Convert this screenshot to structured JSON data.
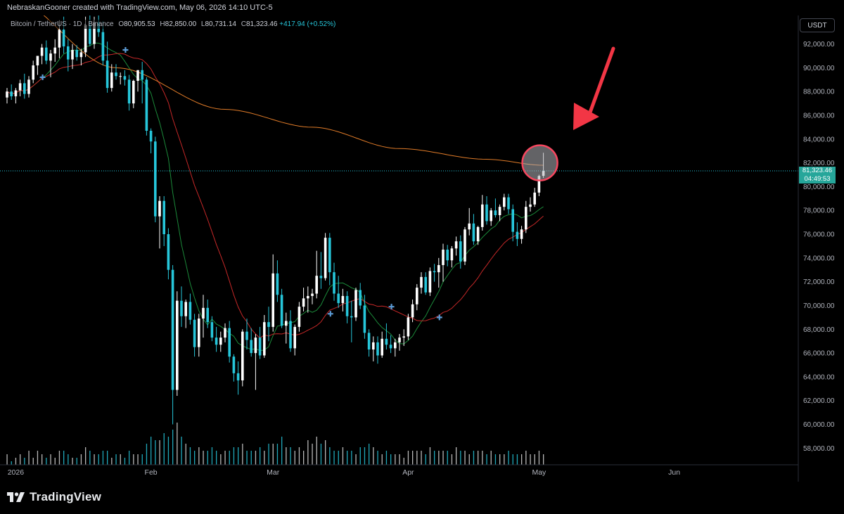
{
  "header": {
    "created_text": "NebraskanGooner created with TradingView.com, May 06, 2026 14:10 UTC-5"
  },
  "legend": {
    "symbol": "Bitcoin / TetherUS · 1D · Binance",
    "open_label": "O",
    "open_value": "80,905.53",
    "high_label": "H",
    "high_value": "82,850.00",
    "low_label": "L",
    "low_value": "80,731.14",
    "close_label": "C",
    "close_value": "81,323.46",
    "change": "+417.94 (+0.52%)"
  },
  "currency_button": "USDT",
  "price_tag": {
    "price": "81,323.46",
    "countdown": "04:49:53"
  },
  "branding": {
    "logo_text": "TradingView",
    "logo_icon": "tradingview-logo-icon"
  },
  "colors": {
    "background": "#000000",
    "candle_up": "#ffffff",
    "candle_down": "#26c6da",
    "ma_fast": "#1b8a3a",
    "ma_mid": "#c62828",
    "ma_slow": "#e07b28",
    "volume": "#26c6da",
    "price_line": "#26c6da",
    "annotation_arrow": "#f23645",
    "annotation_circle": "#f7475f"
  },
  "chart_data": {
    "type": "candlestick",
    "interval": "1D",
    "y_axis_ticks": [
      58000,
      60000,
      62000,
      64000,
      66000,
      68000,
      70000,
      72000,
      74000,
      76000,
      78000,
      80000,
      82000,
      84000,
      86000,
      88000,
      90000,
      92000
    ],
    "y_tick_labels": [
      "58,000.00",
      "60,000.00",
      "62,000.00",
      "64,000.00",
      "66,000.00",
      "68,000.00",
      "70,000.00",
      "72,000.00",
      "74,000.00",
      "76,000.00",
      "78,000.00",
      "80,000.00",
      "82,000.00",
      "84,000.00",
      "86,000.00",
      "88,000.00",
      "90,000.00",
      "92,000.00"
    ],
    "ylim": [
      56600,
      94400
    ],
    "x_axis_labels": [
      {
        "label": "2026",
        "index": 2
      },
      {
        "label": "Feb",
        "index": 33
      },
      {
        "label": "Mar",
        "index": 61
      },
      {
        "label": "Apr",
        "index": 92
      },
      {
        "label": "May",
        "index": 122
      },
      {
        "label": "Jun",
        "index": 153
      }
    ],
    "candles": [
      {
        "o": 87500,
        "h": 88300,
        "l": 87000,
        "c": 88000
      },
      {
        "o": 88000,
        "h": 88600,
        "l": 87300,
        "c": 87600
      },
      {
        "o": 87600,
        "h": 88300,
        "l": 87000,
        "c": 88100
      },
      {
        "o": 88100,
        "h": 89000,
        "l": 87600,
        "c": 88700
      },
      {
        "o": 88700,
        "h": 89500,
        "l": 87400,
        "c": 87800
      },
      {
        "o": 87800,
        "h": 89300,
        "l": 87500,
        "c": 89000
      },
      {
        "o": 89000,
        "h": 90600,
        "l": 88700,
        "c": 90200
      },
      {
        "o": 90200,
        "h": 91000,
        "l": 89400,
        "c": 91000
      },
      {
        "o": 91000,
        "h": 92000,
        "l": 90300,
        "c": 91700
      },
      {
        "o": 91700,
        "h": 92300,
        "l": 90300,
        "c": 90600
      },
      {
        "o": 90600,
        "h": 91500,
        "l": 89200,
        "c": 91200
      },
      {
        "o": 91200,
        "h": 92400,
        "l": 90500,
        "c": 91700
      },
      {
        "o": 91700,
        "h": 94000,
        "l": 90800,
        "c": 93200
      },
      {
        "o": 93200,
        "h": 94300,
        "l": 91200,
        "c": 91800
      },
      {
        "o": 91800,
        "h": 92400,
        "l": 89700,
        "c": 90700
      },
      {
        "o": 90700,
        "h": 92000,
        "l": 89900,
        "c": 91500
      },
      {
        "o": 91500,
        "h": 91900,
        "l": 90600,
        "c": 90900
      },
      {
        "o": 90900,
        "h": 91600,
        "l": 90200,
        "c": 91300
      },
      {
        "o": 91300,
        "h": 94300,
        "l": 90900,
        "c": 93600
      },
      {
        "o": 93600,
        "h": 94400,
        "l": 91800,
        "c": 92000
      },
      {
        "o": 92000,
        "h": 94300,
        "l": 91600,
        "c": 93800
      },
      {
        "o": 93800,
        "h": 94400,
        "l": 92600,
        "c": 93000
      },
      {
        "o": 93000,
        "h": 93900,
        "l": 90200,
        "c": 90600
      },
      {
        "o": 90600,
        "h": 92200,
        "l": 87900,
        "c": 88300
      },
      {
        "o": 88300,
        "h": 90300,
        "l": 88000,
        "c": 89600
      },
      {
        "o": 89600,
        "h": 90300,
        "l": 89000,
        "c": 89300
      },
      {
        "o": 89300,
        "h": 89600,
        "l": 88600,
        "c": 89300
      },
      {
        "o": 89300,
        "h": 89800,
        "l": 88500,
        "c": 89000
      },
      {
        "o": 89000,
        "h": 89400,
        "l": 86400,
        "c": 87000
      },
      {
        "o": 87000,
        "h": 89000,
        "l": 86600,
        "c": 88900
      },
      {
        "o": 88900,
        "h": 89800,
        "l": 88000,
        "c": 89800
      },
      {
        "o": 89800,
        "h": 90500,
        "l": 87000,
        "c": 89000
      },
      {
        "o": 89000,
        "h": 89200,
        "l": 84300,
        "c": 84700
      },
      {
        "o": 84700,
        "h": 84900,
        "l": 82800,
        "c": 83800
      },
      {
        "o": 83800,
        "h": 84200,
        "l": 77000,
        "c": 77500
      },
      {
        "o": 77500,
        "h": 79200,
        "l": 74800,
        "c": 78800
      },
      {
        "o": 78800,
        "h": 79200,
        "l": 75000,
        "c": 76000
      },
      {
        "o": 76000,
        "h": 76500,
        "l": 72200,
        "c": 73000
      },
      {
        "o": 73000,
        "h": 73400,
        "l": 60000,
        "c": 62900
      },
      {
        "o": 62900,
        "h": 71200,
        "l": 62400,
        "c": 70400
      },
      {
        "o": 70400,
        "h": 71600,
        "l": 68200,
        "c": 69100
      },
      {
        "o": 69100,
        "h": 70500,
        "l": 68100,
        "c": 70300
      },
      {
        "o": 70300,
        "h": 71000,
        "l": 68400,
        "c": 68800
      },
      {
        "o": 68800,
        "h": 69300,
        "l": 65700,
        "c": 66500
      },
      {
        "o": 66500,
        "h": 69300,
        "l": 65700,
        "c": 68900
      },
      {
        "o": 68900,
        "h": 70900,
        "l": 67300,
        "c": 69800
      },
      {
        "o": 69800,
        "h": 70500,
        "l": 68100,
        "c": 68600
      },
      {
        "o": 68600,
        "h": 69100,
        "l": 67000,
        "c": 67300
      },
      {
        "o": 67300,
        "h": 68200,
        "l": 66100,
        "c": 66700
      },
      {
        "o": 66700,
        "h": 67800,
        "l": 66100,
        "c": 67300
      },
      {
        "o": 67300,
        "h": 68500,
        "l": 66900,
        "c": 68100
      },
      {
        "o": 68100,
        "h": 68700,
        "l": 65200,
        "c": 65700
      },
      {
        "o": 65700,
        "h": 65900,
        "l": 63600,
        "c": 64300
      },
      {
        "o": 64300,
        "h": 65300,
        "l": 62500,
        "c": 63700
      },
      {
        "o": 63700,
        "h": 68000,
        "l": 63200,
        "c": 67800
      },
      {
        "o": 67800,
        "h": 68900,
        "l": 66300,
        "c": 67100
      },
      {
        "o": 67100,
        "h": 68100,
        "l": 65700,
        "c": 66000
      },
      {
        "o": 66000,
        "h": 67600,
        "l": 62900,
        "c": 67300
      },
      {
        "o": 67300,
        "h": 68200,
        "l": 65500,
        "c": 65800
      },
      {
        "o": 65800,
        "h": 69200,
        "l": 65600,
        "c": 68600
      },
      {
        "o": 68600,
        "h": 69900,
        "l": 67000,
        "c": 68200
      },
      {
        "o": 68200,
        "h": 74300,
        "l": 67800,
        "c": 72700
      },
      {
        "o": 72700,
        "h": 73800,
        "l": 70300,
        "c": 70900
      },
      {
        "o": 70900,
        "h": 71400,
        "l": 68100,
        "c": 68300
      },
      {
        "o": 68300,
        "h": 69400,
        "l": 66800,
        "c": 68700
      },
      {
        "o": 68700,
        "h": 69600,
        "l": 66100,
        "c": 66400
      },
      {
        "o": 66400,
        "h": 68400,
        "l": 65800,
        "c": 68200
      },
      {
        "o": 68200,
        "h": 70300,
        "l": 67800,
        "c": 69900
      },
      {
        "o": 69900,
        "h": 71500,
        "l": 69500,
        "c": 70600
      },
      {
        "o": 70600,
        "h": 71600,
        "l": 69400,
        "c": 70800
      },
      {
        "o": 70800,
        "h": 71400,
        "l": 70100,
        "c": 71000
      },
      {
        "o": 71000,
        "h": 74600,
        "l": 70600,
        "c": 72500
      },
      {
        "o": 72500,
        "h": 74500,
        "l": 71400,
        "c": 72300
      },
      {
        "o": 72300,
        "h": 76100,
        "l": 72100,
        "c": 75700
      },
      {
        "o": 75700,
        "h": 76100,
        "l": 71700,
        "c": 72800
      },
      {
        "o": 72800,
        "h": 73600,
        "l": 70400,
        "c": 71000
      },
      {
        "o": 71000,
        "h": 72500,
        "l": 69800,
        "c": 70200
      },
      {
        "o": 70200,
        "h": 71400,
        "l": 69500,
        "c": 70800
      },
      {
        "o": 70800,
        "h": 71200,
        "l": 68500,
        "c": 69100
      },
      {
        "o": 69100,
        "h": 70400,
        "l": 66900,
        "c": 69000
      },
      {
        "o": 69000,
        "h": 71500,
        "l": 68700,
        "c": 71300
      },
      {
        "o": 71300,
        "h": 71900,
        "l": 69700,
        "c": 70000
      },
      {
        "o": 70000,
        "h": 70900,
        "l": 67200,
        "c": 67700
      },
      {
        "o": 67700,
        "h": 68000,
        "l": 65700,
        "c": 66300
      },
      {
        "o": 66300,
        "h": 67400,
        "l": 65300,
        "c": 66900
      },
      {
        "o": 66900,
        "h": 67400,
        "l": 65100,
        "c": 65800
      },
      {
        "o": 65800,
        "h": 67800,
        "l": 65600,
        "c": 67200
      },
      {
        "o": 67200,
        "h": 68500,
        "l": 66300,
        "c": 66700
      },
      {
        "o": 66700,
        "h": 67500,
        "l": 66000,
        "c": 66400
      },
      {
        "o": 66400,
        "h": 67200,
        "l": 65700,
        "c": 66900
      },
      {
        "o": 66900,
        "h": 67600,
        "l": 66200,
        "c": 67300
      },
      {
        "o": 67300,
        "h": 68000,
        "l": 66600,
        "c": 67400
      },
      {
        "o": 67400,
        "h": 69300,
        "l": 67100,
        "c": 69000
      },
      {
        "o": 69000,
        "h": 70500,
        "l": 68600,
        "c": 70100
      },
      {
        "o": 70100,
        "h": 71800,
        "l": 69600,
        "c": 71500
      },
      {
        "o": 71500,
        "h": 72800,
        "l": 71000,
        "c": 72400
      },
      {
        "o": 72400,
        "h": 72800,
        "l": 70900,
        "c": 71100
      },
      {
        "o": 71100,
        "h": 73200,
        "l": 70800,
        "c": 72900
      },
      {
        "o": 72900,
        "h": 73500,
        "l": 72000,
        "c": 72800
      },
      {
        "o": 72800,
        "h": 74000,
        "l": 71500,
        "c": 73400
      },
      {
        "o": 73400,
        "h": 75200,
        "l": 72000,
        "c": 74700
      },
      {
        "o": 74700,
        "h": 75100,
        "l": 73300,
        "c": 73800
      },
      {
        "o": 73800,
        "h": 75000,
        "l": 73200,
        "c": 74800
      },
      {
        "o": 74800,
        "h": 75800,
        "l": 74200,
        "c": 75400
      },
      {
        "o": 75400,
        "h": 75900,
        "l": 73100,
        "c": 73700
      },
      {
        "o": 73700,
        "h": 76600,
        "l": 73400,
        "c": 76400
      },
      {
        "o": 76400,
        "h": 78200,
        "l": 75900,
        "c": 76900
      },
      {
        "o": 76900,
        "h": 77700,
        "l": 75100,
        "c": 75400
      },
      {
        "o": 75400,
        "h": 76700,
        "l": 75100,
        "c": 76600
      },
      {
        "o": 76600,
        "h": 79300,
        "l": 76300,
        "c": 78500
      },
      {
        "o": 78500,
        "h": 79200,
        "l": 76800,
        "c": 77100
      },
      {
        "o": 77100,
        "h": 78200,
        "l": 76700,
        "c": 78000
      },
      {
        "o": 78000,
        "h": 79000,
        "l": 77400,
        "c": 77600
      },
      {
        "o": 77600,
        "h": 78500,
        "l": 77100,
        "c": 78300
      },
      {
        "o": 78300,
        "h": 79400,
        "l": 78000,
        "c": 79100
      },
      {
        "o": 79100,
        "h": 79400,
        "l": 77700,
        "c": 78100
      },
      {
        "o": 78100,
        "h": 78500,
        "l": 75400,
        "c": 76200
      },
      {
        "o": 76200,
        "h": 77000,
        "l": 75000,
        "c": 75600
      },
      {
        "o": 75600,
        "h": 76700,
        "l": 75200,
        "c": 76400
      },
      {
        "o": 76400,
        "h": 78800,
        "l": 76100,
        "c": 78300
      },
      {
        "o": 78300,
        "h": 79100,
        "l": 77900,
        "c": 78500
      },
      {
        "o": 78500,
        "h": 79900,
        "l": 78300,
        "c": 79500
      },
      {
        "o": 79500,
        "h": 81000,
        "l": 79200,
        "c": 80900
      },
      {
        "o": 80905.53,
        "h": 82850,
        "l": 80731.14,
        "c": 81323.46
      }
    ],
    "volume": [
      3,
      1,
      2,
      3,
      2,
      4,
      2,
      4,
      3,
      2,
      3,
      2,
      4,
      4,
      3,
      2,
      2,
      3,
      5,
      4,
      3,
      3,
      4,
      4,
      2,
      3,
      3,
      2,
      4,
      3,
      3,
      3,
      6,
      8,
      7,
      7,
      9,
      8,
      10,
      12,
      8,
      6,
      5,
      4,
      5,
      4,
      4,
      5,
      4,
      3,
      4,
      4,
      5,
      5,
      6,
      4,
      4,
      4,
      5,
      4,
      6,
      6,
      6,
      8,
      5,
      5,
      4,
      5,
      4,
      7,
      6,
      8,
      6,
      7,
      5,
      4,
      4,
      5,
      4,
      4,
      3,
      5,
      5,
      6,
      5,
      4,
      3,
      4,
      3,
      3,
      3,
      2,
      4,
      4,
      4,
      4,
      3,
      5,
      4,
      4,
      4,
      4,
      3,
      5,
      4,
      4,
      3,
      4,
      4,
      4,
      3,
      4,
      3,
      3,
      3,
      4,
      3,
      3,
      3,
      4,
      3,
      3,
      4,
      3
    ],
    "volume_max": 12,
    "moving_averages": [
      {
        "period": 9,
        "color_key": "ma_fast"
      },
      {
        "period": 21,
        "color_key": "ma_mid"
      },
      {
        "period": 100,
        "color_key": "ma_slow",
        "values_at": {
          "start": 96000,
          "index_25": 90000,
          "index_50": 86500,
          "index_70": 85000,
          "index_90": 83200,
          "index_110": 82300,
          "index_123": 81800
        }
      }
    ],
    "last_price": 81323.46
  }
}
